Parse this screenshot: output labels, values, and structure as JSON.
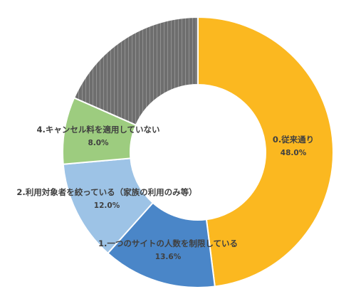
{
  "chart_data": {
    "type": "pie",
    "variant": "donut",
    "slices": [
      {
        "label": "0.従来通り",
        "value": 48.0,
        "display": "48.0%",
        "color": "#FBB820"
      },
      {
        "label": "1.一つのサイトの人数を制限している",
        "value": 13.6,
        "display": "13.6%",
        "color": "#4A86C8"
      },
      {
        "label": "2.利用対象者を絞っている（家族の利用のみ等）",
        "value": 12.0,
        "display": "12.0%",
        "color": "#9DC3E6"
      },
      {
        "label": "4.キャンセル料を適用していない",
        "value": 8.0,
        "display": "8.0%",
        "color": "#9DCC7F"
      },
      {
        "label": "",
        "value": 18.4,
        "display": "",
        "color": "#707070",
        "hatched": true
      }
    ],
    "start_angle_deg": 0,
    "direction": "clockwise",
    "legend": "none",
    "data_labels": "inside"
  }
}
